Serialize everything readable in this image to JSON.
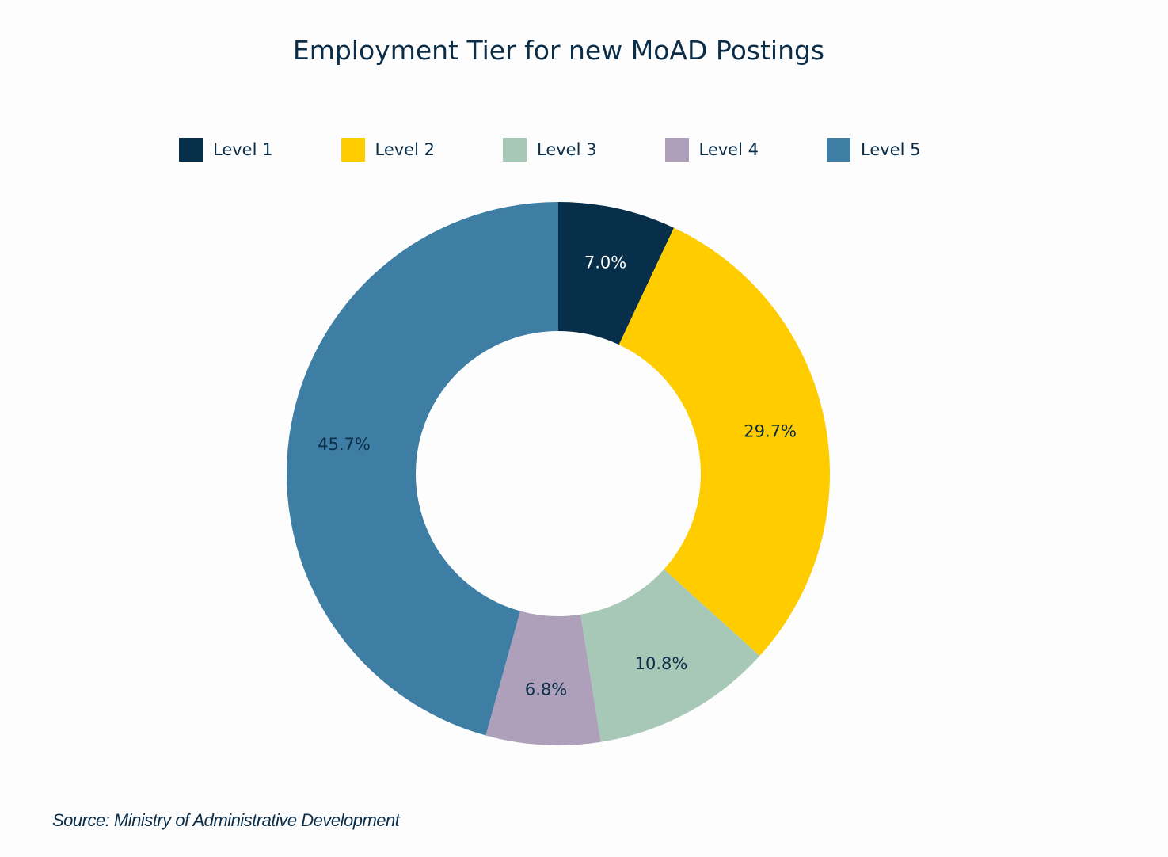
{
  "chart_data": {
    "type": "pie",
    "title": "Employment Tier for new MoAD Postings",
    "donut": true,
    "categories": [
      "Level 1",
      "Level 2",
      "Level 3",
      "Level 4",
      "Level 5"
    ],
    "values": [
      7.0,
      29.7,
      10.8,
      6.8,
      45.7
    ],
    "data_labels": [
      "7.0%",
      "29.7%",
      "10.8%",
      "6.8%",
      "45.7%"
    ],
    "colors": [
      "#072f4a",
      "#ffcc00",
      "#a8c8b7",
      "#ae9fbb",
      "#3f7ea4"
    ],
    "label_colors": [
      "#ffffff",
      "#0b2d48",
      "#0b2d48",
      "#0b2d48",
      "#0b2d48"
    ],
    "legend_position": "top",
    "start_angle": "12 o'clock",
    "direction": "clockwise"
  },
  "footer": {
    "source": "Source: Ministry of Administrative Development"
  }
}
